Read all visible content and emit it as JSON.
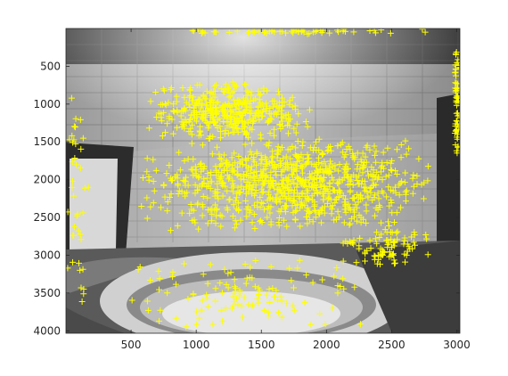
{
  "chart_data": {
    "type": "scatter",
    "title": "",
    "xlabel": "",
    "ylabel": "",
    "xlim": [
      0,
      3024
    ],
    "ylim": [
      4032,
      0
    ],
    "y_reversed": true,
    "grid": false,
    "background": "grayscale photograph of a room interior with tiled wall and round ceiling fixture",
    "marker": "+",
    "marker_color": "#ffff00",
    "x_ticks": [
      500,
      1000,
      1500,
      2000,
      2500,
      3000
    ],
    "x_tick_labels": [
      "500",
      "1000",
      "1500",
      "2000",
      "2500",
      "3000"
    ],
    "y_ticks": [
      500,
      1000,
      1500,
      2000,
      2500,
      3000,
      3500,
      4000
    ],
    "y_tick_labels": [
      "500",
      "1000",
      "1500",
      "2000",
      "2500",
      "3000",
      "3500",
      "4000"
    ],
    "point_clusters": [
      {
        "region": "upper-center dense band",
        "x_range": [
          600,
          1900
        ],
        "y_range": [
          700,
          1500
        ],
        "approx_count": 420
      },
      {
        "region": "central horizontal band",
        "x_range": [
          550,
          2850
        ],
        "y_range": [
          1400,
          2700
        ],
        "approx_count": 900
      },
      {
        "region": "lower-right scatter",
        "x_range": [
          2100,
          2850
        ],
        "y_range": [
          2600,
          3200
        ],
        "approx_count": 90
      },
      {
        "region": "lower floor scatter",
        "x_range": [
          400,
          2300
        ],
        "y_range": [
          3000,
          4050
        ],
        "approx_count": 120
      },
      {
        "region": "top edge",
        "x_range": [
          380,
          3000
        ],
        "y_range": [
          0,
          80
        ],
        "approx_count": 60
      },
      {
        "region": "right edge",
        "x_range": [
          2980,
          3024
        ],
        "y_range": [
          200,
          1900
        ],
        "approx_count": 60
      },
      {
        "region": "left edge",
        "x_range": [
          0,
          180
        ],
        "y_range": [
          500,
          4000
        ],
        "approx_count": 40
      }
    ]
  }
}
